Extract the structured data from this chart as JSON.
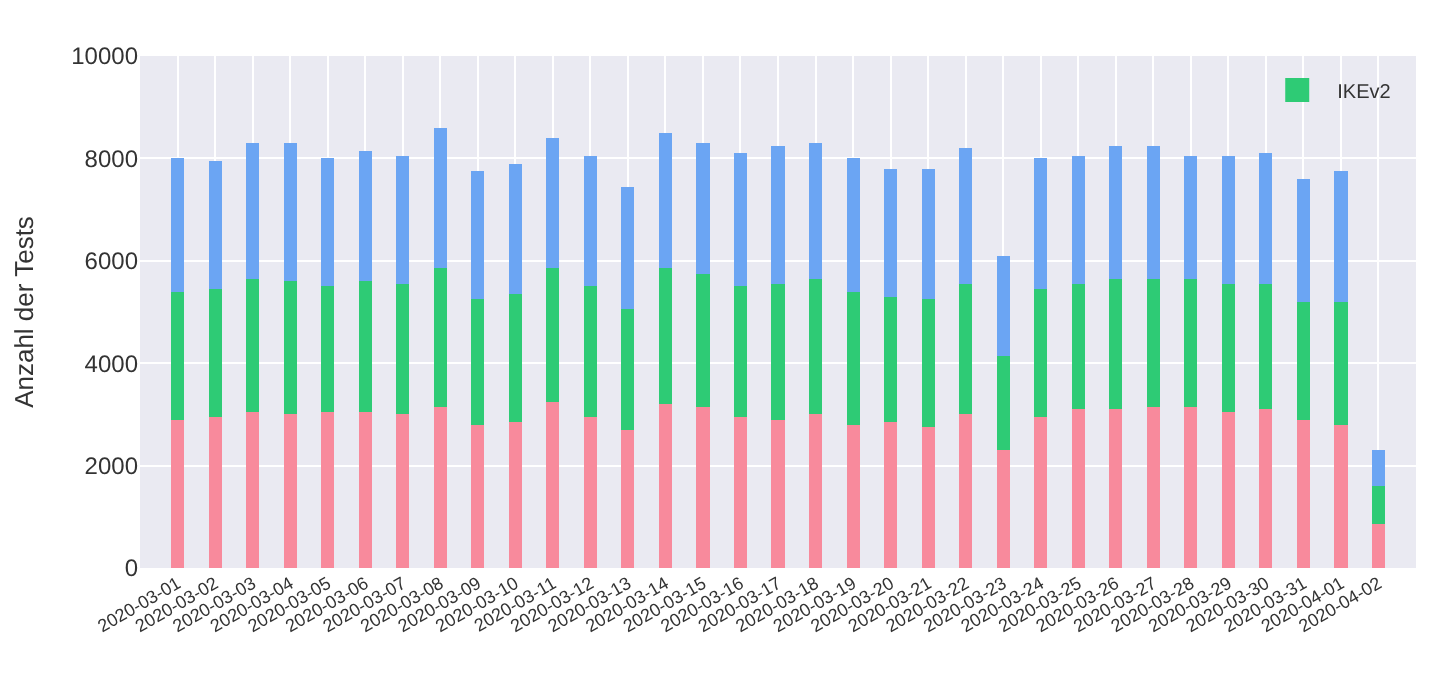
{
  "chart_data": {
    "type": "bar",
    "stacked": true,
    "ylabel": "Anzahl der Tests",
    "categories": [
      "2020-03-01",
      "2020-03-02",
      "2020-03-03",
      "2020-03-04",
      "2020-03-05",
      "2020-03-06",
      "2020-03-07",
      "2020-03-08",
      "2020-03-09",
      "2020-03-10",
      "2020-03-11",
      "2020-03-12",
      "2020-03-13",
      "2020-03-14",
      "2020-03-15",
      "2020-03-16",
      "2020-03-17",
      "2020-03-18",
      "2020-03-19",
      "2020-03-20",
      "2020-03-21",
      "2020-03-22",
      "2020-03-23",
      "2020-03-24",
      "2020-03-25",
      "2020-03-26",
      "2020-03-27",
      "2020-03-28",
      "2020-03-29",
      "2020-03-30",
      "2020-03-31",
      "2020-04-01",
      "2020-04-02"
    ],
    "series": [
      {
        "color": "#f88a9c",
        "values": [
          2900,
          2950,
          3050,
          3000,
          3050,
          3050,
          3000,
          3150,
          2800,
          2850,
          3250,
          2950,
          2700,
          3200,
          3150,
          2950,
          2900,
          3000,
          2800,
          2850,
          2750,
          3000,
          2300,
          2950,
          3100,
          3100,
          3150,
          3150,
          3050,
          3100,
          2900,
          2800,
          850
        ]
      },
      {
        "name": "IKEv2",
        "color": "#2ecb75",
        "values": [
          2500,
          2500,
          2600,
          2600,
          2450,
          2550,
          2550,
          2700,
          2450,
          2500,
          2600,
          2550,
          2350,
          2650,
          2600,
          2550,
          2650,
          2650,
          2600,
          2450,
          2500,
          2550,
          1850,
          2500,
          2450,
          2550,
          2500,
          2500,
          2500,
          2450,
          2300,
          2400,
          750
        ]
      },
      {
        "color": "#6ba5f3",
        "values": [
          2600,
          2500,
          2650,
          2700,
          2500,
          2550,
          2500,
          2750,
          2500,
          2550,
          2550,
          2550,
          2400,
          2650,
          2550,
          2600,
          2700,
          2650,
          2600,
          2500,
          2550,
          2650,
          1950,
          2550,
          2500,
          2600,
          2600,
          2400,
          2500,
          2550,
          2400,
          2550,
          700
        ]
      }
    ],
    "ylim": [
      0,
      10000
    ],
    "yticks": [
      0,
      2000,
      4000,
      6000,
      8000,
      10000
    ],
    "grid": true,
    "legend": "top right"
  }
}
